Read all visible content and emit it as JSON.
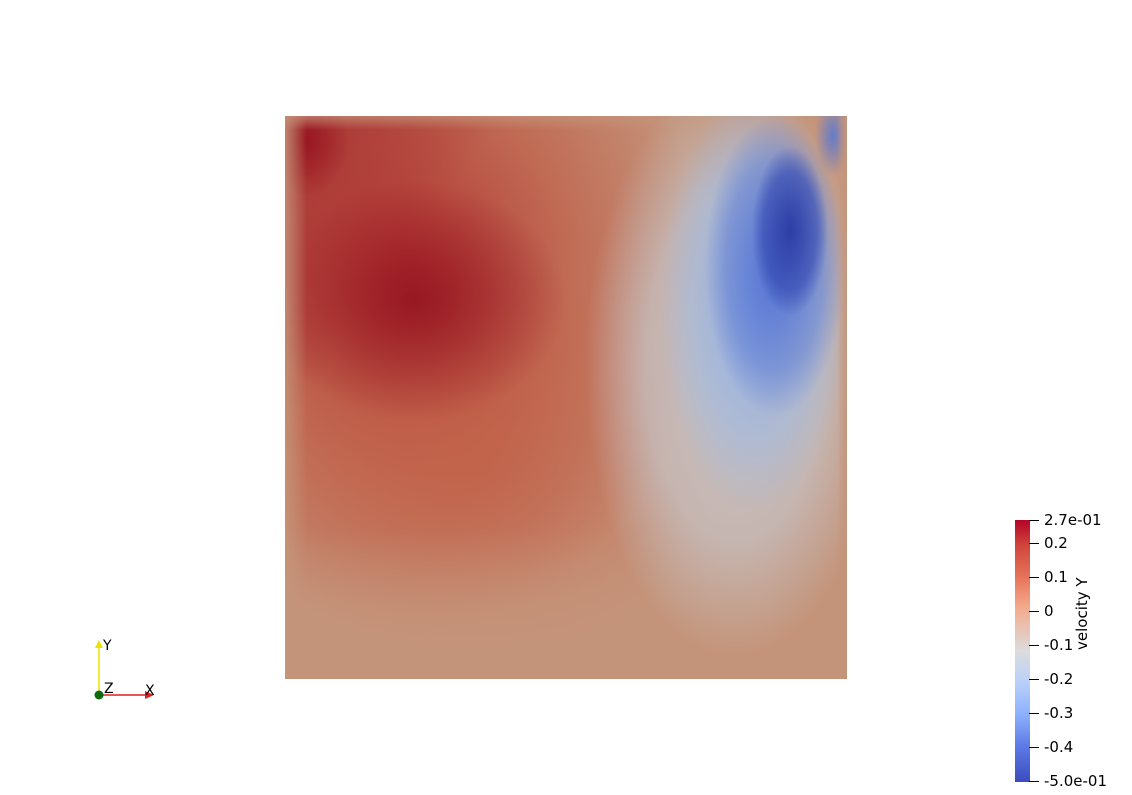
{
  "scalar_bar": {
    "title": "velocity Y",
    "max_label": "2.7e-01",
    "min_label": "-5.0e-01",
    "ticks": [
      "0.2",
      "0.1",
      "0",
      "-0.1",
      "-0.2",
      "-0.3",
      "-0.4"
    ],
    "range": [
      -0.5,
      0.27
    ],
    "colormap": "cool-to-warm"
  },
  "axes_widget": {
    "x_label": "X",
    "y_label": "Y",
    "z_label": "Z",
    "x_color": "#e11d1d",
    "y_color": "#e8e300",
    "z_color": "#0d6b0d"
  },
  "field": {
    "background_color": "#c4947a",
    "positive_color": "#b40426",
    "negative_color": "#3b4cc0"
  }
}
